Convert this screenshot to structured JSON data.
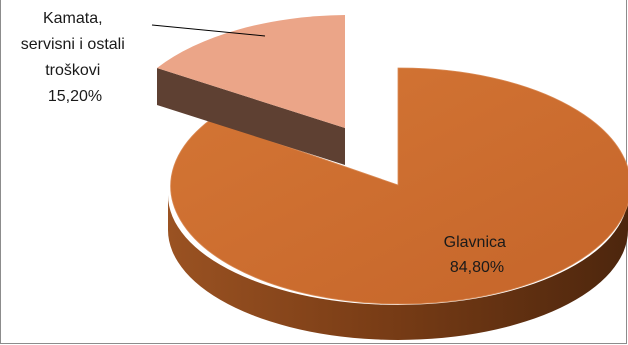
{
  "chart_data": {
    "type": "pie",
    "style": "3d-exploded",
    "slices": [
      {
        "label_lines": [
          "Kamata,",
          "servisni i ostali",
          "troškovi"
        ],
        "value_text": "15,20%",
        "value": 15.2,
        "color": "#eba588",
        "side_color": "#5e4032"
      },
      {
        "label_lines": [
          "Glavnica"
        ],
        "value_text": "84,80%",
        "value": 84.8,
        "color": "#cd6b2c",
        "side_color": "#8a461a"
      }
    ]
  }
}
